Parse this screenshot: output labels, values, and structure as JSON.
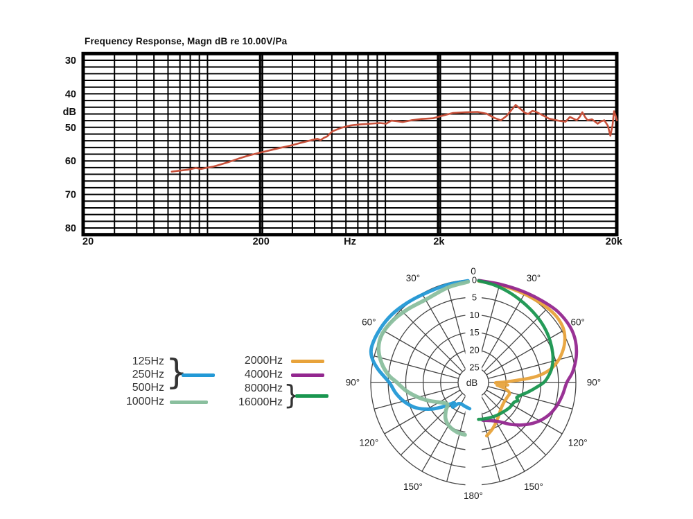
{
  "fr_chart": {
    "title": "Frequency Response, Magn dB re 10.00V/Pa",
    "y_unit": "dB",
    "x_unit": "Hz"
  },
  "legend": {
    "labels": [
      "125Hz",
      "250Hz",
      "500Hz",
      "1000Hz",
      "2000Hz",
      "4000Hz",
      "8000Hz",
      "16000Hz"
    ],
    "brace": "}"
  },
  "chart_data": [
    {
      "type": "line",
      "title": "Frequency Response, Magn dB re 10.00V/Pa",
      "xlabel": "Hz",
      "ylabel": "dB",
      "x_scale": "log",
      "xlim": [
        20,
        20000
      ],
      "ylim_top_to_bottom": [
        28,
        82
      ],
      "grid_db_step": 2,
      "y_ticks": [
        30,
        40,
        50,
        60,
        70,
        80
      ],
      "y_unit_label": "dB",
      "y_unit_at": 45.3,
      "x_ticks": [
        [
          20,
          "20"
        ],
        [
          200,
          "200"
        ],
        [
          632,
          "Hz"
        ],
        [
          2000,
          "2k"
        ],
        [
          20000,
          "20k"
        ]
      ],
      "series": [
        {
          "name": "frequency-response",
          "color": "#c8503a",
          "points": [
            [
              63,
              63.2
            ],
            [
              70,
              62.9
            ],
            [
              78,
              62.6
            ],
            [
              86,
              62.1
            ],
            [
              92,
              62.4
            ],
            [
              100,
              62.0
            ],
            [
              108,
              61.7
            ],
            [
              118,
              61.1
            ],
            [
              132,
              60.3
            ],
            [
              150,
              59.3
            ],
            [
              170,
              58.4
            ],
            [
              195,
              57.6
            ],
            [
              222,
              56.9
            ],
            [
              252,
              56.2
            ],
            [
              290,
              55.5
            ],
            [
              335,
              54.6
            ],
            [
              385,
              53.8
            ],
            [
              415,
              53.4
            ],
            [
              432,
              53.8
            ],
            [
              452,
              53.1
            ],
            [
              470,
              52.7
            ],
            [
              503,
              51.2
            ],
            [
              560,
              50.2
            ],
            [
              640,
              49.4
            ],
            [
              730,
              49.1
            ],
            [
              830,
              48.9
            ],
            [
              930,
              48.7
            ],
            [
              1010,
              48.9
            ],
            [
              1080,
              48.0
            ],
            [
              1170,
              48.2
            ],
            [
              1250,
              48.4
            ],
            [
              1400,
              47.9
            ],
            [
              1600,
              47.5
            ],
            [
              1850,
              47.3
            ],
            [
              2100,
              46.5
            ],
            [
              2400,
              45.7
            ],
            [
              2800,
              45.5
            ],
            [
              3300,
              45.4
            ],
            [
              3700,
              45.9
            ],
            [
              4100,
              47.2
            ],
            [
              4460,
              47.9
            ],
            [
              4800,
              46.6
            ],
            [
              5100,
              44.9
            ],
            [
              5400,
              43.3
            ],
            [
              5800,
              44.7
            ],
            [
              6100,
              45.7
            ],
            [
              6350,
              46.0
            ],
            [
              6700,
              45.1
            ],
            [
              7000,
              45.3
            ],
            [
              7600,
              46.3
            ],
            [
              8300,
              47.4
            ],
            [
              9000,
              47.8
            ],
            [
              9600,
              48.1
            ],
            [
              10300,
              48.3
            ],
            [
              10900,
              46.9
            ],
            [
              11400,
              47.4
            ],
            [
              11900,
              47.9
            ],
            [
              12400,
              46.8
            ],
            [
              12800,
              45.5
            ],
            [
              13300,
              47.0
            ],
            [
              13700,
              47.9
            ],
            [
              14500,
              47.6
            ],
            [
              15000,
              48.2
            ],
            [
              15600,
              48.9
            ],
            [
              16300,
              48.2
            ],
            [
              17000,
              47.9
            ],
            [
              17800,
              49.5
            ],
            [
              18400,
              52.5
            ],
            [
              18900,
              49.5
            ],
            [
              19300,
              45.2
            ],
            [
              19700,
              46.6
            ],
            [
              20000,
              47.9
            ]
          ]
        }
      ]
    },
    {
      "type": "polar",
      "radial_unit": "dB",
      "center_label": "dB",
      "radial_ticks": [
        0,
        5,
        10,
        15,
        20,
        25
      ],
      "angle_labels": [
        [
          0,
          "0"
        ],
        [
          30,
          "30°"
        ],
        [
          60,
          "60°"
        ],
        [
          90,
          "90°"
        ],
        [
          120,
          "120°"
        ],
        [
          150,
          "150°"
        ],
        [
          180,
          "180°"
        ]
      ],
      "spoke_step_deg": 15,
      "series": [
        {
          "name": "125-500Hz",
          "legend_labels": [
            "125Hz",
            "250Hz",
            "500Hz"
          ],
          "color": "#2399d6",
          "side": "left",
          "width": 5,
          "points": [
            [
              3,
              0.2
            ],
            [
              15,
              0.4
            ],
            [
              30,
              0.3
            ],
            [
              40,
              -0.3
            ],
            [
              50,
              -1.0
            ],
            [
              60,
              -1.4
            ],
            [
              70,
              -1.5
            ],
            [
              76,
              -0.6
            ],
            [
              82,
              1.8
            ],
            [
              90,
              5.3
            ],
            [
              98,
              7.0
            ],
            [
              106,
              9.0
            ],
            [
              114,
              11.5
            ],
            [
              122,
              15.0
            ],
            [
              128,
              18.0
            ],
            [
              133,
              20.3
            ],
            [
              137,
              21.4
            ],
            [
              140,
              20.2
            ],
            [
              144,
              21.8
            ],
            [
              150,
              22.3
            ],
            [
              158,
              22.2
            ],
            [
              166,
              22.0
            ],
            [
              172,
              21.8
            ]
          ]
        },
        {
          "name": "1000Hz",
          "legend_labels": [
            "1000Hz"
          ],
          "color": "#8abf9e",
          "side": "left",
          "width": 5.6,
          "points": [
            [
              3,
              0.5
            ],
            [
              15,
              1.2
            ],
            [
              30,
              2.0
            ],
            [
              42,
              1.2
            ],
            [
              52,
              0.3
            ],
            [
              62,
              -0.2
            ],
            [
              70,
              0.5
            ],
            [
              78,
              2.5
            ],
            [
              85,
              5.0
            ],
            [
              90,
              7.5
            ],
            [
              97,
              10.0
            ],
            [
              105,
              13.0
            ],
            [
              112,
              15.5
            ],
            [
              119,
              17.8
            ],
            [
              126,
              19.3
            ],
            [
              131,
              19.6
            ],
            [
              136,
              18.0
            ],
            [
              143,
              16.2
            ],
            [
              152,
              15.0
            ],
            [
              162,
              14.4
            ],
            [
              171,
              14.2
            ]
          ]
        },
        {
          "name": "2000Hz",
          "legend_labels": [
            "2000Hz"
          ],
          "color": "#e8a33b",
          "side": "right",
          "width": 4.6,
          "points": [
            [
              3,
              0.3
            ],
            [
              15,
              0.4
            ],
            [
              28,
              0.2
            ],
            [
              40,
              -0.4
            ],
            [
              50,
              -1.0
            ],
            [
              58,
              -0.8
            ],
            [
              64,
              0.2
            ],
            [
              70,
              2.0
            ],
            [
              76,
              4.5
            ],
            [
              81,
              7.5
            ],
            [
              85,
              12.0
            ],
            [
              89,
              20.0
            ],
            [
              91,
              23.0
            ],
            [
              94,
              19.5
            ],
            [
              96,
              22.5
            ],
            [
              100,
              20.5
            ],
            [
              106,
              18.6
            ],
            [
              114,
              18.8
            ],
            [
              124,
              18.9
            ],
            [
              134,
              18.4
            ],
            [
              144,
              17.2
            ],
            [
              154,
              15.6
            ],
            [
              160,
              14.6
            ],
            [
              166,
              13.6
            ]
          ]
        },
        {
          "name": "4000Hz",
          "legend_labels": [
            "4000Hz"
          ],
          "color": "#93278f",
          "side": "right",
          "width": 4.6,
          "points": [
            [
              3,
              0.1
            ],
            [
              15,
              0.2
            ],
            [
              28,
              -0.3
            ],
            [
              40,
              -1.2
            ],
            [
              50,
              -2.2
            ],
            [
              60,
              -2.6
            ],
            [
              68,
              -2.2
            ],
            [
              76,
              -1.0
            ],
            [
              84,
              0.8
            ],
            [
              90,
              2.6
            ],
            [
              98,
              3.6
            ],
            [
              106,
              4.6
            ],
            [
              114,
              6.0
            ],
            [
              122,
              8.0
            ],
            [
              130,
              10.5
            ],
            [
              138,
              13.2
            ],
            [
              146,
              15.8
            ],
            [
              155,
              17.3
            ],
            [
              166,
              18.2
            ]
          ]
        },
        {
          "name": "8000-16000Hz",
          "legend_labels": [
            "8000Hz",
            "16000Hz"
          ],
          "color": "#19964f",
          "side": "right",
          "width": 4.6,
          "points": [
            [
              3,
              0.2
            ],
            [
              12,
              0.8
            ],
            [
              22,
              1.6
            ],
            [
              32,
              2.4
            ],
            [
              42,
              3.0
            ],
            [
              52,
              3.6
            ],
            [
              62,
              4.4
            ],
            [
              72,
              5.4
            ],
            [
              80,
              6.6
            ],
            [
              86,
              8.0
            ],
            [
              90,
              9.2
            ],
            [
              95,
              11.5
            ],
            [
              100,
              13.5
            ],
            [
              105,
              15.3
            ],
            [
              109,
              16.2
            ],
            [
              112,
              15.6
            ],
            [
              116,
              16.4
            ],
            [
              124,
              16.7
            ],
            [
              134,
              17.3
            ],
            [
              144,
              17.8
            ],
            [
              154,
              18.2
            ],
            [
              164,
              18.5
            ],
            [
              172,
              18.7
            ]
          ]
        }
      ]
    }
  ]
}
